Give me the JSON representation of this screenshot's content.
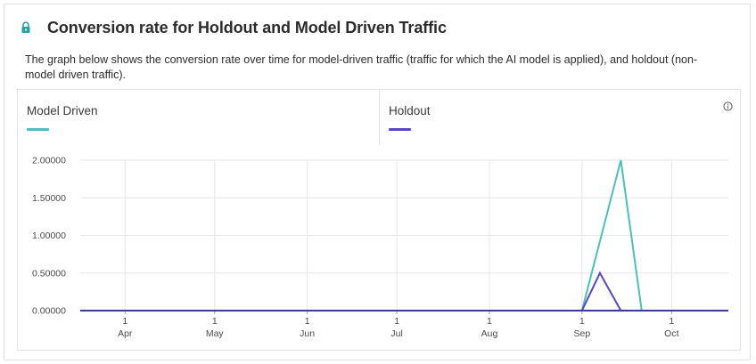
{
  "header": {
    "title": "Conversion rate for Holdout and Model Driven Traffic",
    "lock_icon": "lock-icon",
    "lock_color": "#2aa1a1"
  },
  "description": "The graph below shows the conversion rate over time for model-driven traffic (traffic for which the AI model is applied), and holdout (non-model driven traffic).",
  "legend": [
    {
      "label": "Model Driven",
      "color": "#4bbfbf"
    },
    {
      "label": "Holdout",
      "color": "#5a45c0"
    }
  ],
  "info_icon": "info-icon",
  "chart_data": {
    "type": "line",
    "title": "",
    "xlabel": "",
    "ylabel": "",
    "x_ticks": [
      {
        "day": "1",
        "month": "Apr",
        "date": "2023-04-01"
      },
      {
        "day": "1",
        "month": "May",
        "date": "2023-05-01"
      },
      {
        "day": "1",
        "month": "Jun",
        "date": "2023-06-01"
      },
      {
        "day": "1",
        "month": "Jul",
        "date": "2023-07-01"
      },
      {
        "day": "1",
        "month": "Aug",
        "date": "2023-08-01"
      },
      {
        "day": "1",
        "month": "Sep",
        "date": "2023-09-01"
      },
      {
        "day": "1",
        "month": "Oct",
        "date": "2023-10-01"
      }
    ],
    "xlim": [
      "2023-03-17",
      "2023-10-20"
    ],
    "y_ticks": [
      "0.00000",
      "0.50000",
      "1.00000",
      "1.50000",
      "2.00000"
    ],
    "y_tick_values": [
      0,
      0.5,
      1.0,
      1.5,
      2.0
    ],
    "ylim": [
      0,
      2.0
    ],
    "grid": true,
    "legend_position": "top",
    "series": [
      {
        "name": "Model Driven",
        "color": "#4bbfbf",
        "points": [
          {
            "x": "2023-03-17",
            "y": 0
          },
          {
            "x": "2023-09-01",
            "y": 0
          },
          {
            "x": "2023-09-14",
            "y": 2.0
          },
          {
            "x": "2023-09-21",
            "y": 0
          },
          {
            "x": "2023-10-20",
            "y": 0
          }
        ]
      },
      {
        "name": "Holdout",
        "color": "#5a45c0",
        "points": [
          {
            "x": "2023-03-17",
            "y": 0
          },
          {
            "x": "2023-09-01",
            "y": 0
          },
          {
            "x": "2023-09-07",
            "y": 0.5
          },
          {
            "x": "2023-09-14",
            "y": 0
          },
          {
            "x": "2023-10-20",
            "y": 0
          }
        ]
      }
    ]
  }
}
